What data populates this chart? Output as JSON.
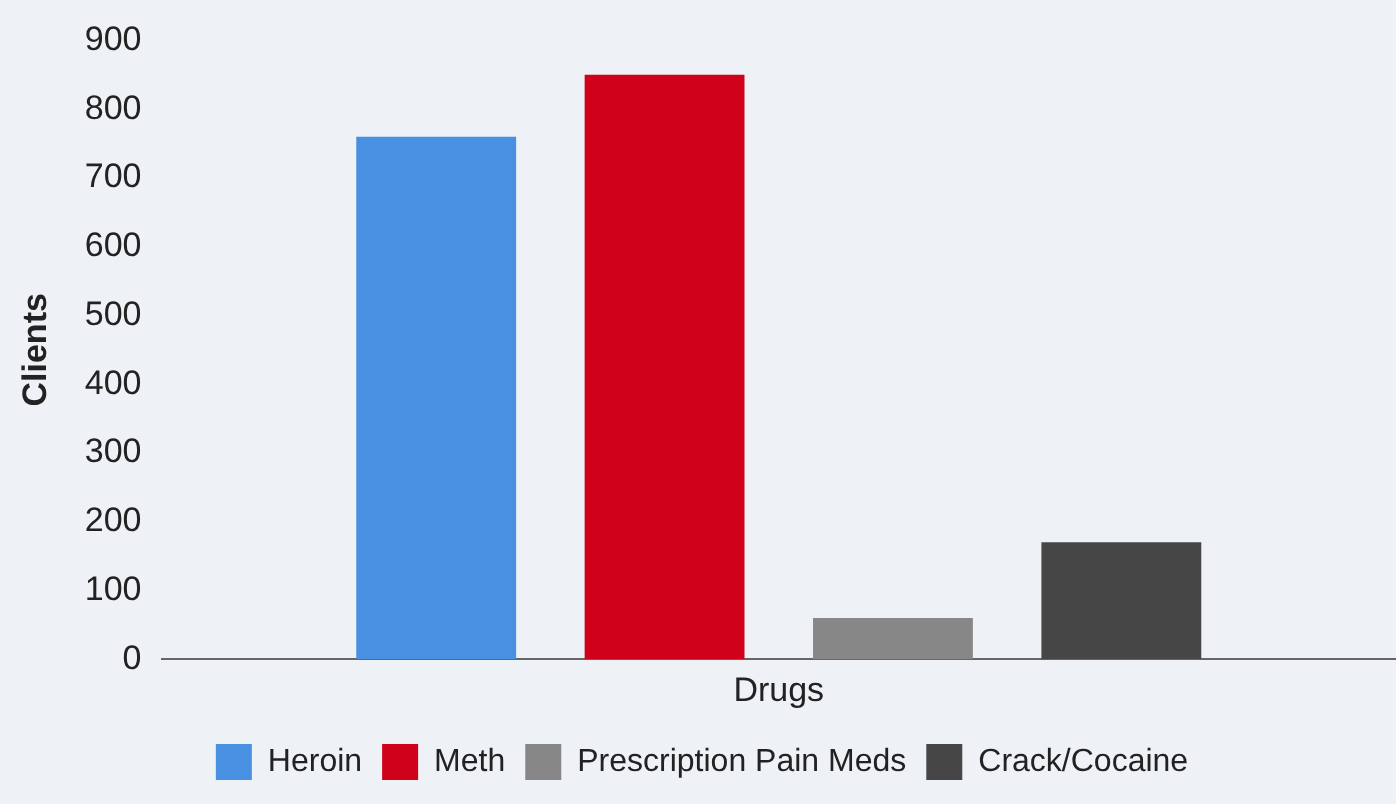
{
  "chart_data": {
    "type": "bar",
    "ylabel": "Clients",
    "categories": [
      "Drugs"
    ],
    "series": [
      {
        "name": "Heroin",
        "color": "#4a90e2",
        "values": [
          760
        ]
      },
      {
        "name": "Meth",
        "color": "#d0021b",
        "values": [
          850
        ]
      },
      {
        "name": "Prescription Pain Meds",
        "color": "#878787",
        "values": [
          60
        ]
      },
      {
        "name": "Crack/Cocaine",
        "color": "#464646",
        "values": [
          170
        ]
      }
    ],
    "ylim": [
      0,
      900
    ],
    "yticks": [
      0,
      100,
      200,
      300,
      400,
      500,
      600,
      700,
      800,
      900
    ],
    "legend": "bottom"
  }
}
